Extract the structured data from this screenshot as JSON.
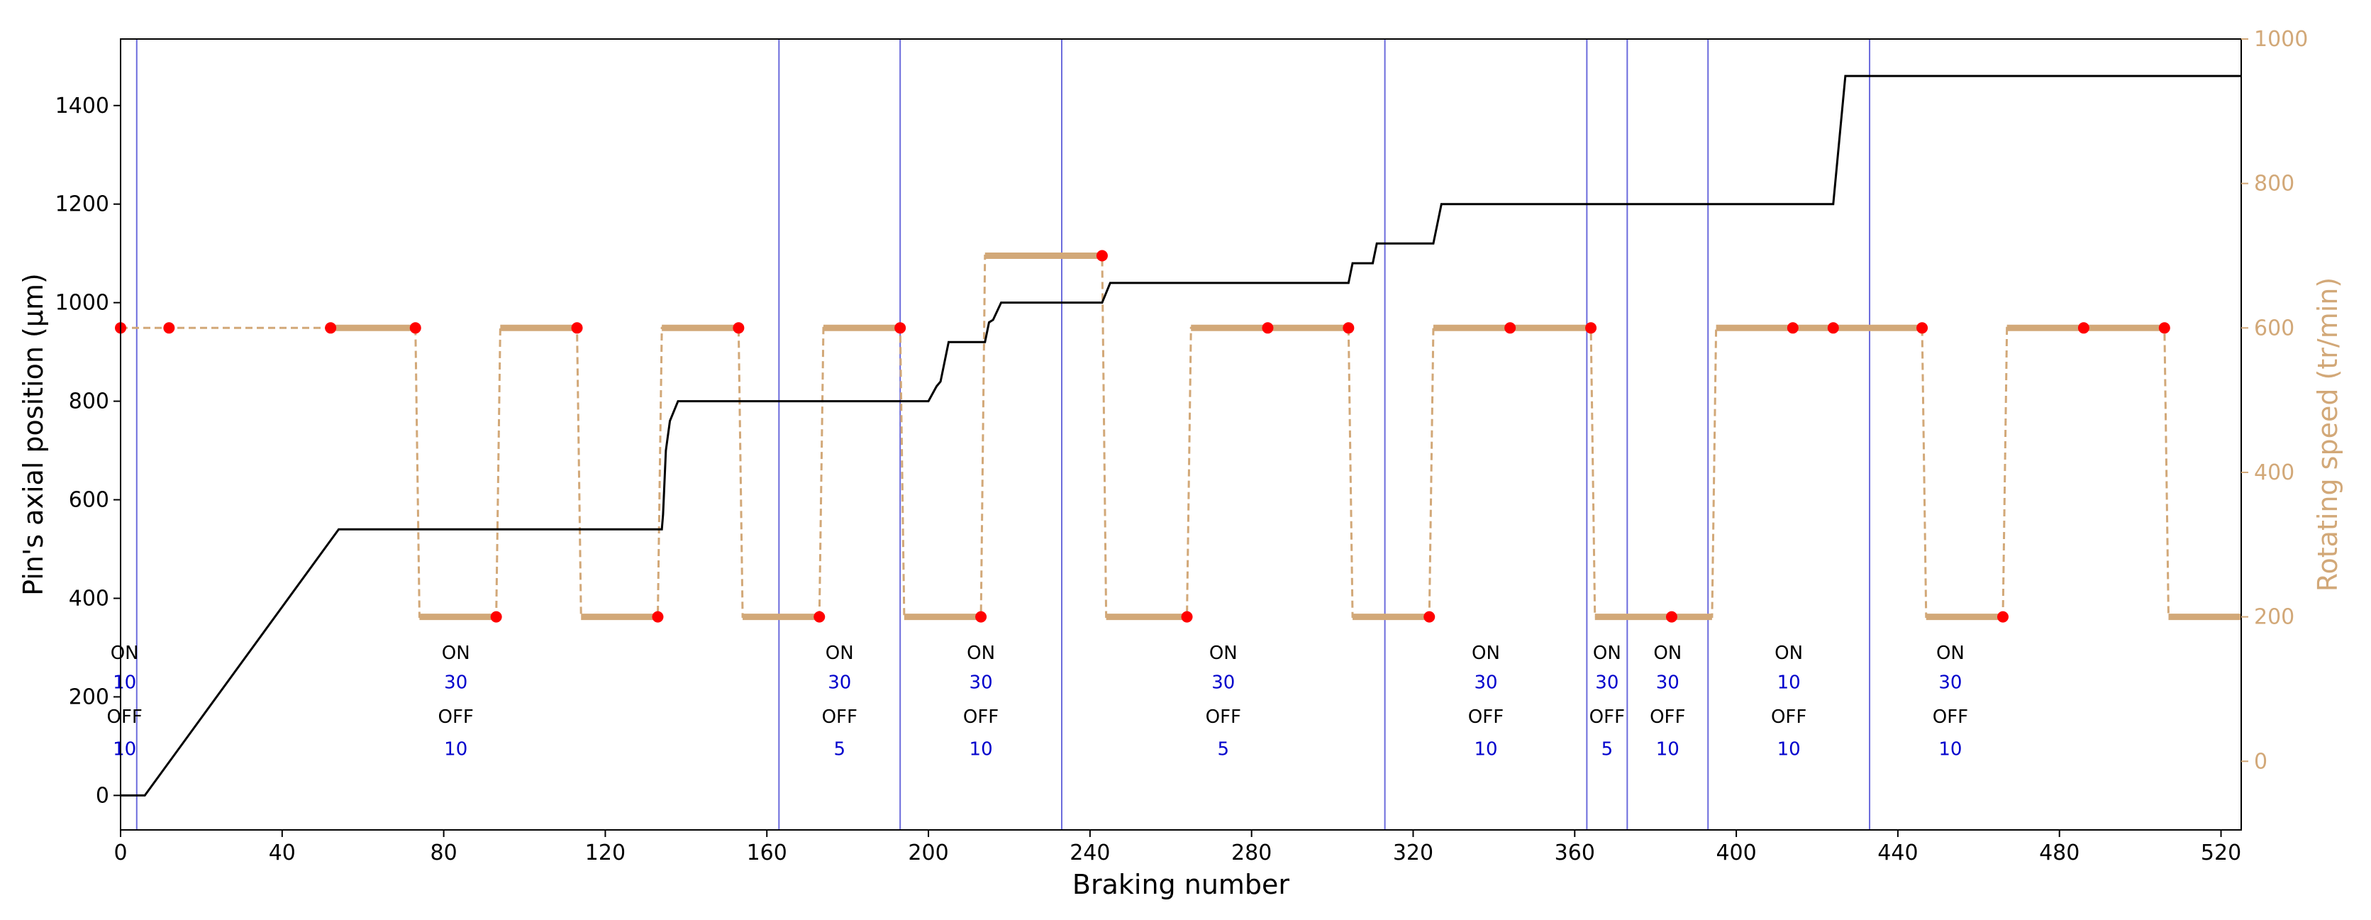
{
  "chart_data": {
    "type": "line",
    "xlabel": "Braking number",
    "ylabel_left": "Pin's axial position (µm)",
    "ylabel_right": "Rotating speed (tr/min)",
    "xlim": [
      0,
      525
    ],
    "ylim_left": [
      -70,
      1535
    ],
    "ylim_right": [
      -95,
      1000
    ],
    "xticks": [
      0,
      40,
      80,
      120,
      160,
      200,
      240,
      280,
      320,
      360,
      400,
      440,
      480,
      520
    ],
    "yticks_left": [
      0,
      200,
      400,
      600,
      800,
      1000,
      1200,
      1400
    ],
    "yticks_right": [
      0,
      200,
      400,
      600,
      800,
      1000
    ],
    "grid": false,
    "colors": {
      "position_line": "#000000",
      "speed_line": "#d2a878",
      "speed_markers": "#ff0000",
      "vertical_lines": "#6b6bdc",
      "right_axis": "#d2a878",
      "annotation_label": "#000000",
      "annotation_value": "#0000cc"
    },
    "position_series": {
      "x": [
        0,
        6,
        54,
        134,
        134.3,
        135,
        136,
        138,
        200,
        202,
        203,
        205,
        214,
        215,
        216,
        218,
        243,
        245,
        304,
        305,
        310,
        311,
        325,
        327,
        424,
        427,
        525
      ],
      "y": [
        0,
        0,
        540,
        540,
        570,
        700,
        760,
        800,
        800,
        830,
        840,
        920,
        920,
        960,
        965,
        1000,
        1000,
        1040,
        1040,
        1080,
        1080,
        1120,
        1120,
        1200,
        1200,
        1460,
        1460
      ]
    },
    "speed_series": {
      "x": [
        0,
        52,
        73,
        74,
        93,
        94,
        113,
        114,
        133,
        134,
        153,
        154,
        173,
        174,
        193,
        194,
        213,
        214,
        243,
        244,
        264,
        265,
        304,
        305,
        324,
        325,
        364,
        365,
        394,
        395,
        446,
        447,
        466,
        467,
        506,
        507,
        525
      ],
      "y": [
        600,
        600,
        600,
        200,
        200,
        600,
        600,
        200,
        200,
        600,
        600,
        200,
        200,
        600,
        600,
        200,
        200,
        700,
        700,
        200,
        200,
        600,
        600,
        200,
        200,
        600,
        600,
        200,
        200,
        600,
        600,
        200,
        200,
        600,
        600,
        200,
        200
      ]
    },
    "speed_markers": {
      "x": [
        0,
        12,
        52,
        73,
        93,
        113,
        133,
        153,
        173,
        193,
        213,
        243,
        264,
        284,
        304,
        324,
        344,
        364,
        384,
        414,
        424,
        446,
        466,
        486,
        506
      ],
      "y": [
        600,
        600,
        600,
        600,
        200,
        600,
        200,
        600,
        200,
        600,
        200,
        700,
        200,
        600,
        600,
        200,
        600,
        600,
        200,
        600,
        600,
        600,
        200,
        600,
        600
      ]
    },
    "vertical_lines_x": [
      4,
      163,
      193,
      233,
      313,
      363,
      373,
      393,
      433
    ],
    "annotations": [
      {
        "x": 1,
        "on_label": "ON",
        "on_value": "10",
        "off_label": "OFF",
        "off_value": "10"
      },
      {
        "x": 83,
        "on_label": "ON",
        "on_value": "30",
        "off_label": "OFF",
        "off_value": "10"
      },
      {
        "x": 178,
        "on_label": "ON",
        "on_value": "30",
        "off_label": "OFF",
        "off_value": "5"
      },
      {
        "x": 213,
        "on_label": "ON",
        "on_value": "30",
        "off_label": "OFF",
        "off_value": "10"
      },
      {
        "x": 273,
        "on_label": "ON",
        "on_value": "30",
        "off_label": "OFF",
        "off_value": "5"
      },
      {
        "x": 338,
        "on_label": "ON",
        "on_value": "30",
        "off_label": "OFF",
        "off_value": "10"
      },
      {
        "x": 368,
        "on_label": "ON",
        "on_value": "30",
        "off_label": "OFF",
        "off_value": "5"
      },
      {
        "x": 383,
        "on_label": "ON",
        "on_value": "30",
        "off_label": "OFF",
        "off_value": "10"
      },
      {
        "x": 413,
        "on_label": "ON",
        "on_value": "10",
        "off_label": "OFF",
        "off_value": "10"
      },
      {
        "x": 453,
        "on_label": "ON",
        "on_value": "30",
        "off_label": "OFF",
        "off_value": "10"
      }
    ],
    "annotation_rows_left_axis": {
      "on_label": 290,
      "on_value": 230,
      "off_label": 160,
      "off_value": 95
    }
  }
}
